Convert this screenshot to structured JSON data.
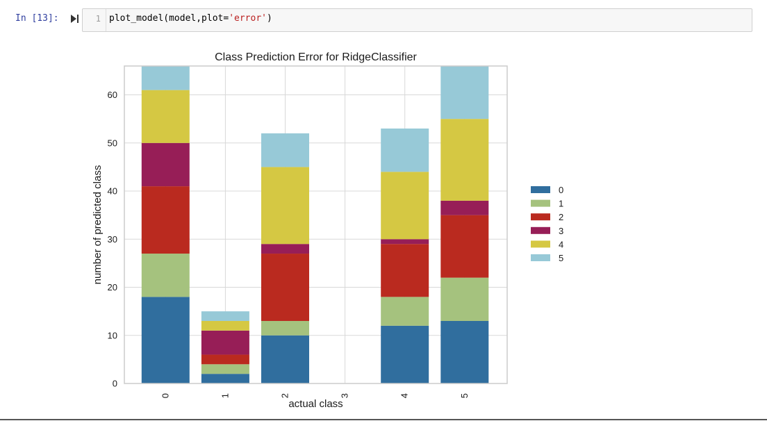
{
  "cell": {
    "prompt": "In [13]:",
    "line_number": "1",
    "code_prefix": "plot_model(model,plot=",
    "code_string": "'error'",
    "code_suffix": ")"
  },
  "colors": {
    "0": "#306e9e",
    "1": "#a5c27e",
    "2": "#ba2a1f",
    "3": "#971e57",
    "4": "#d5c843",
    "5": "#97c9d7"
  },
  "chart_data": {
    "type": "bar",
    "stacked": true,
    "title": "Class Prediction Error for RidgeClassifier",
    "xlabel": "actual class",
    "ylabel": "number of predicted class",
    "categories": [
      "0",
      "1",
      "2",
      "3",
      "4",
      "5"
    ],
    "ylim": [
      0,
      66
    ],
    "yticks": [
      0,
      10,
      20,
      30,
      40,
      50,
      60
    ],
    "grid": true,
    "legend_position": "right",
    "series": [
      {
        "name": "0",
        "values": [
          18,
          2,
          10,
          0,
          12,
          13
        ]
      },
      {
        "name": "1",
        "values": [
          9,
          2,
          3,
          0,
          6,
          9
        ]
      },
      {
        "name": "2",
        "values": [
          14,
          2,
          14,
          0,
          11,
          13
        ]
      },
      {
        "name": "3",
        "values": [
          9,
          5,
          2,
          0,
          1,
          3
        ]
      },
      {
        "name": "4",
        "values": [
          11,
          2,
          16,
          0,
          14,
          17
        ]
      },
      {
        "name": "5",
        "values": [
          5,
          2,
          7,
          0,
          9,
          11
        ]
      }
    ]
  }
}
